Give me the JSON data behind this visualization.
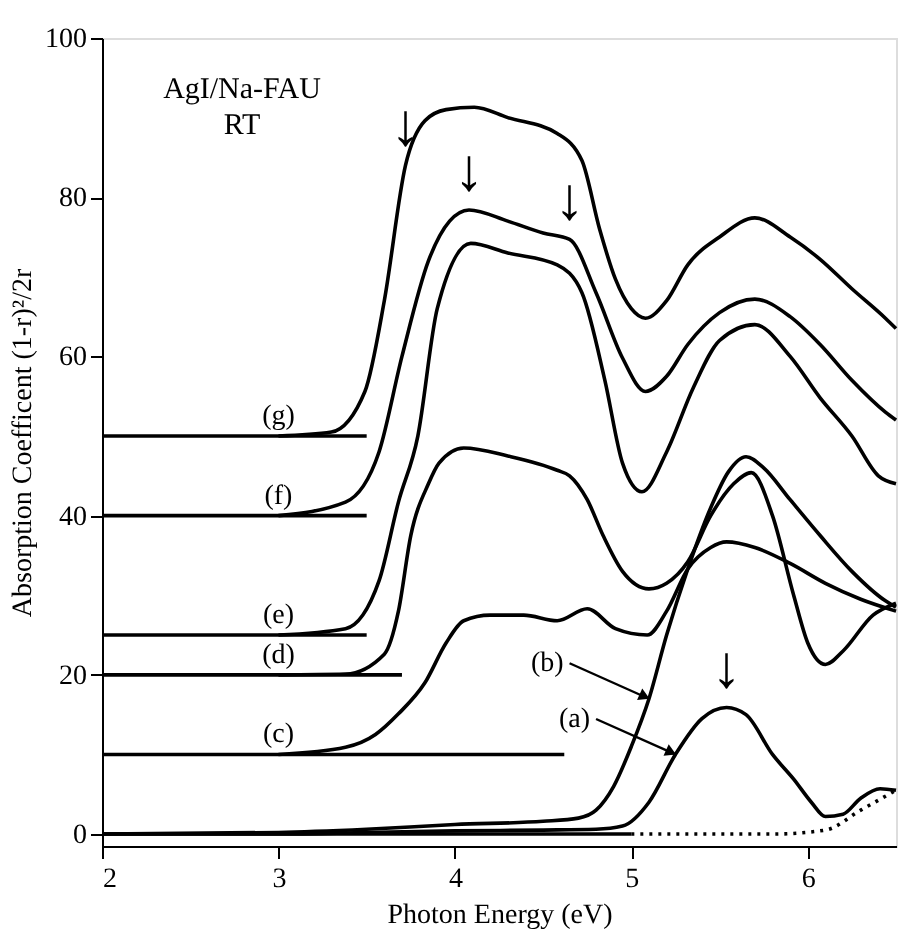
{
  "chart_data": {
    "type": "line",
    "xlabel": "Photon Energy  (eV)",
    "ylabel": "Absorption Coefficent (1-r)²/2r",
    "xlim": [
      2,
      6.5
    ],
    "ylim": [
      -1.5,
      100
    ],
    "xticks": [
      {
        "value": 2,
        "label": "2"
      },
      {
        "value": 3,
        "label": "3"
      },
      {
        "value": 4,
        "label": "4"
      },
      {
        "value": 5,
        "label": "5"
      },
      {
        "value": 6,
        "label": "6"
      }
    ],
    "yticks": [
      0,
      20,
      40,
      60,
      80,
      100
    ],
    "grid": false,
    "marker": "none",
    "series": [
      {
        "color": "#000000",
        "line_style": "solid",
        "x": [
          2,
          3,
          3.5,
          4,
          4.5,
          4.8,
          4.95,
          5.1,
          5.25,
          5.4,
          5.54,
          5.65,
          5.8,
          5.92,
          6.02,
          6.1,
          6.2,
          6.3,
          6.41,
          6.5
        ],
        "values": [
          0,
          0,
          0.2,
          0.4,
          0.5,
          0.6,
          1,
          4,
          10,
          14.5,
          15.9,
          15,
          10,
          6.9,
          4,
          2.2,
          2.5,
          4.5,
          5.7,
          5.5
        ]
      },
      {
        "color": "#000000",
        "line_style": "solid",
        "x": [
          2,
          3,
          3.5,
          4,
          4.5,
          4.7,
          4.8,
          4.9,
          5.0,
          5.1,
          5.2,
          5.32,
          5.45,
          5.55,
          5.65,
          5.75,
          5.9,
          6.07,
          6.25,
          6.44,
          6.5
        ],
        "values": [
          0,
          0.2,
          0.6,
          1.2,
          1.6,
          2,
          3,
          6,
          11,
          17,
          25,
          33.3,
          41,
          45.5,
          47.4,
          46,
          42,
          37.5,
          33,
          29.3,
          28.5
        ]
      },
      {
        "color": "#000000",
        "line_style": "solid",
        "x": [
          3.0,
          3.38,
          3.55,
          3.68,
          3.83,
          3.95,
          4.05,
          4.2,
          4.39,
          4.58,
          4.75,
          4.91,
          5.09,
          5.2,
          5.32,
          5.45,
          5.54,
          5.7,
          5.9,
          6.1,
          6.3,
          6.5
        ],
        "values": [
          10,
          10.9,
          12.5,
          15.1,
          19,
          24,
          26.8,
          27.5,
          27.5,
          26.8,
          28.3,
          25.8,
          25,
          28,
          33.3,
          36,
          36.7,
          36,
          34,
          31.5,
          29.5,
          28
        ]
      },
      {
        "color": "#000000",
        "line_style": "solid",
        "x": [
          3.0,
          3.38,
          3.6,
          3.68,
          3.75,
          3.85,
          3.91,
          4.05,
          4.3,
          4.58,
          4.65,
          4.75,
          4.84,
          4.95,
          5.1,
          5.2,
          5.32,
          5.45,
          5.58,
          5.68,
          5.8,
          5.92,
          6.0,
          6.1,
          6.2,
          6.37,
          6.5
        ],
        "values": [
          20,
          20.1,
          22.6,
          28,
          37.5,
          44,
          46.6,
          48.5,
          47.5,
          45.7,
          45,
          42,
          37.5,
          33,
          30.8,
          31.5,
          34.2,
          40,
          44,
          45.4,
          40,
          30,
          24,
          21.3,
          23,
          27.5,
          29
        ]
      },
      {
        "color": "#000000",
        "line_style": "solid",
        "x": [
          3.0,
          3.38,
          3.57,
          3.68,
          3.79,
          3.9,
          4.09,
          4.3,
          4.58,
          4.72,
          4.85,
          4.95,
          5.06,
          5.2,
          5.35,
          5.5,
          5.7,
          5.9,
          6.07,
          6.25,
          6.4,
          6.5
        ],
        "values": [
          25,
          25.8,
          31.8,
          41.7,
          50,
          66,
          74.2,
          73,
          71.5,
          68,
          57,
          46.6,
          43,
          48,
          56,
          62,
          64,
          60,
          54.8,
          50,
          45,
          44
        ]
      },
      {
        "color": "#000000",
        "line_style": "solid",
        "x": [
          3.0,
          3.38,
          3.57,
          3.7,
          3.85,
          3.97,
          4.08,
          4.3,
          4.5,
          4.65,
          4.8,
          4.95,
          5.08,
          5.2,
          5.32,
          5.5,
          5.7,
          5.9,
          6.07,
          6.25,
          6.44,
          6.5
        ],
        "values": [
          40,
          41.7,
          48,
          60,
          72,
          77,
          78.4,
          77,
          75.5,
          74.7,
          68,
          59.8,
          55.6,
          57.5,
          61.5,
          65.5,
          67.2,
          65,
          61.5,
          57,
          53,
          52
        ]
      },
      {
        "color": "#000000",
        "line_style": "solid",
        "x": [
          3.0,
          3.3,
          3.49,
          3.6,
          3.72,
          3.83,
          3.95,
          4.11,
          4.3,
          4.58,
          4.72,
          4.82,
          4.91,
          5.0,
          5.08,
          5.2,
          5.32,
          5.5,
          5.7,
          5.9,
          6.07,
          6.25,
          6.44,
          6.5
        ],
        "values": [
          50,
          50.5,
          55.6,
          67,
          84,
          89.6,
          91,
          91.3,
          90,
          88,
          84.6,
          76,
          69.7,
          66,
          64.8,
          67,
          71.5,
          75,
          77.4,
          75,
          72.2,
          68.5,
          64.8,
          63.5
        ]
      },
      {
        "color": "#000000",
        "line_style": "solid",
        "x": [
          2,
          3.5
        ],
        "values": [
          50,
          50
        ]
      },
      {
        "color": "#000000",
        "line_style": "solid",
        "x": [
          2,
          3.5
        ],
        "values": [
          40,
          40
        ]
      },
      {
        "color": "#000000",
        "line_style": "solid",
        "x": [
          2,
          3.5
        ],
        "values": [
          25,
          25
        ]
      },
      {
        "color": "#000000",
        "line_style": "solid",
        "x": [
          2,
          3.7
        ],
        "values": [
          20,
          20
        ]
      },
      {
        "color": "#000000",
        "line_style": "solid",
        "x": [
          2,
          4.62
        ],
        "values": [
          10,
          10
        ]
      },
      {
        "color": "#000000",
        "line_style": "solid",
        "x": [
          2,
          5.0
        ],
        "values": [
          0,
          0
        ]
      },
      {
        "color": "#000000",
        "line_style": "dotted",
        "x": [
          5.0,
          5.8,
          6.1,
          6.3,
          6.5
        ],
        "values": [
          0,
          0,
          0.5,
          3,
          5.5
        ]
      }
    ],
    "annotations": [
      "AgI/Na-FAU",
      "RT",
      {
        "text": "(g)",
        "x": 3.0,
        "y": 50
      },
      {
        "text": "(f)",
        "x": 3.0,
        "y": 40
      },
      {
        "text": "(e)",
        "x": 3.0,
        "y": 25
      },
      {
        "text": "(d)",
        "x": 3.0,
        "y": 20
      },
      {
        "text": "(c)",
        "x": 3.0,
        "y": 10
      },
      {
        "text": "(b)",
        "x": 5.1,
        "y": 17
      },
      {
        "text": "(a)",
        "x": 5.25,
        "y": 10
      },
      {
        "text": "↓",
        "x": 3.72,
        "y": 84
      },
      {
        "text": "↓",
        "x": 4.08,
        "y": 78.4
      },
      {
        "text": "↓",
        "x": 4.65,
        "y": 74.7
      },
      {
        "text": "↓",
        "x": 5.54,
        "y": 15.9
      }
    ]
  }
}
